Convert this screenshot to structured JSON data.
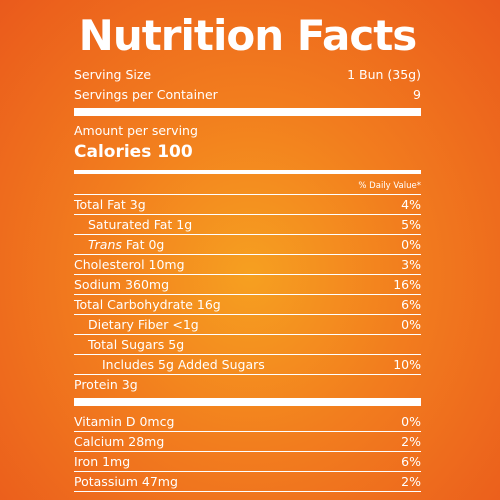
{
  "title": "Nutrition Facts",
  "serving_size_label": "Serving Size",
  "serving_size_value": "1 Bun (35g)",
  "servings_label": "Servings per Container",
  "servings_value": "9",
  "amount_label": "Amount per serving",
  "calories_label": "Calories 100",
  "dv_header": "% Daily Value*",
  "nutrients": [
    {
      "name": "Total Fat 3g",
      "dv": "4%"
    },
    {
      "name": "Saturated Fat 1g",
      "dv": "5%"
    },
    {
      "name_italic": "Trans",
      "name_rest": " Fat 0g",
      "dv": "0%"
    },
    {
      "name": "Cholesterol 10mg",
      "dv": "3%"
    },
    {
      "name": "Sodium 360mg",
      "dv": "16%"
    },
    {
      "name": "Total Carbohydrate 16g",
      "dv": "6%"
    },
    {
      "name": "Dietary Fiber <1g",
      "dv": "0%"
    },
    {
      "name": "Total Sugars 5g",
      "dv": ""
    },
    {
      "name": "Includes 5g Added Sugars",
      "dv": "10%"
    },
    {
      "name": "Protein 3g",
      "dv": ""
    }
  ],
  "vitamins": [
    {
      "name": "Vitamin D 0mcg",
      "dv": "0%"
    },
    {
      "name": "Calcium 28mg",
      "dv": "2%"
    },
    {
      "name": "Iron 1mg",
      "dv": "6%"
    },
    {
      "name": "Potassium 47mg",
      "dv": "2%"
    }
  ]
}
